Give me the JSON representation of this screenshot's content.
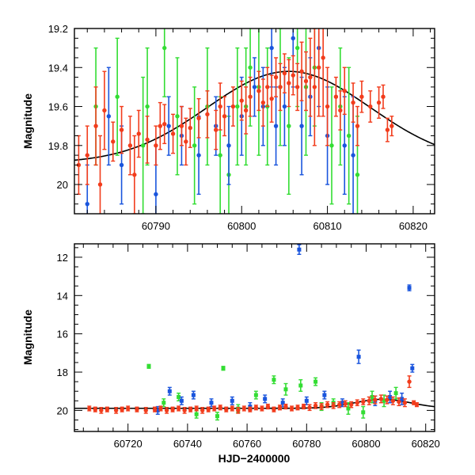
{
  "colors": {
    "red": "#f23c1c",
    "green": "#33dd33",
    "blue": "#1a55dd",
    "model": "#000000"
  },
  "chart_data": [
    {
      "type": "scatter",
      "title": "",
      "xlabel": "",
      "ylabel": "Magnitude",
      "xlim": [
        60780.5,
        60822.5
      ],
      "ylim": [
        20.15,
        19.2
      ],
      "y_inverted": true,
      "xticks": [
        60790,
        60800,
        60810,
        60820
      ],
      "yticks": [
        19.2,
        19.4,
        19.6,
        19.8,
        20
      ],
      "ytick_labels": [
        "19.2",
        "19.4",
        "19.6",
        "19.8",
        "20"
      ],
      "model_curve": {
        "type": "gaussian-dip",
        "baseline": 19.89,
        "peak_mag": 19.42,
        "peak_x": 60805.5,
        "sigma": 9.5
      },
      "series": [
        {
          "color": "red",
          "x": [
            60781,
            60782,
            60783,
            60783.5,
            60784,
            60785,
            60786,
            60787,
            60787.5,
            60788,
            60789,
            60790,
            60790.5,
            60791,
            60792,
            60793,
            60793.5,
            60794,
            60795,
            60796,
            60797,
            60797.5,
            60798,
            60799,
            60800,
            60800.5,
            60801,
            60802,
            60802.5,
            60803,
            60803.5,
            60804,
            60804.5,
            60805,
            60805.5,
            60806,
            60806.5,
            60807,
            60807.5,
            60808,
            60808.5,
            60809,
            60809.5,
            60810,
            60811,
            60811.5,
            60812,
            60813,
            60813.5,
            60814,
            60815,
            60816,
            60816.5,
            60817,
            60817.5
          ],
          "y": [
            19.9,
            19.85,
            19.7,
            20.0,
            19.62,
            19.78,
            19.72,
            19.8,
            19.95,
            19.74,
            19.77,
            19.8,
            19.7,
            19.69,
            19.74,
            19.7,
            19.78,
            19.71,
            19.66,
            19.64,
            19.72,
            19.6,
            19.65,
            19.6,
            19.57,
            19.62,
            19.55,
            19.52,
            19.58,
            19.5,
            19.56,
            19.45,
            19.5,
            19.43,
            19.48,
            19.44,
            19.5,
            19.42,
            19.47,
            19.45,
            19.5,
            19.4,
            19.35,
            19.6,
            19.55,
            19.62,
            19.52,
            19.58,
            19.7,
            19.55,
            19.6,
            19.58,
            19.55,
            19.72,
            19.7
          ],
          "err": [
            0.15,
            0.15,
            0.2,
            0.25,
            0.2,
            0.1,
            0.12,
            0.15,
            0.2,
            0.12,
            0.12,
            0.1,
            0.12,
            0.1,
            0.1,
            0.1,
            0.12,
            0.1,
            0.1,
            0.12,
            0.1,
            0.12,
            0.1,
            0.1,
            0.1,
            0.12,
            0.1,
            0.1,
            0.12,
            0.1,
            0.12,
            0.1,
            0.12,
            0.1,
            0.12,
            0.1,
            0.12,
            0.15,
            0.15,
            0.2,
            0.3,
            0.25,
            0.3,
            0.2,
            0.1,
            0.1,
            0.12,
            0.1,
            0.1,
            0.08,
            0.08,
            0.08,
            0.06,
            0.06,
            0.05
          ]
        },
        {
          "color": "blue",
          "x": [
            60782,
            60784.5,
            60786,
            60790,
            60791.5,
            60793,
            60795,
            60797,
            60798.5,
            60800,
            60801.5,
            60802.5,
            60803.5,
            60804,
            60805,
            60806,
            60807,
            60808,
            60809,
            60810,
            60812,
            60813
          ],
          "y": [
            20.1,
            19.65,
            19.9,
            20.05,
            19.7,
            19.75,
            19.85,
            19.7,
            19.8,
            19.65,
            19.5,
            19.6,
            19.3,
            19.7,
            19.6,
            19.25,
            19.7,
            19.55,
            19.3,
            19.75,
            19.8,
            19.85
          ],
          "err": [
            0.2,
            0.25,
            0.2,
            0.25,
            0.15,
            0.15,
            0.2,
            0.15,
            0.2,
            0.2,
            0.15,
            0.2,
            0.2,
            0.2,
            0.2,
            0.25,
            0.25,
            0.2,
            0.3,
            0.25,
            0.25,
            0.3
          ]
        },
        {
          "color": "green",
          "x": [
            60783,
            60785.5,
            60788.5,
            60789,
            60791,
            60792.5,
            60794.5,
            60796,
            60797.5,
            60798.5,
            60799.5,
            60800.5,
            60801,
            60802,
            60803,
            60804.5,
            60805.5,
            60806.5,
            60807.5,
            60808.5,
            60810.5,
            60811.5,
            60812.5,
            60813.5
          ],
          "y": [
            19.6,
            19.55,
            19.8,
            19.6,
            19.3,
            19.65,
            19.8,
            19.6,
            19.85,
            19.95,
            19.6,
            19.6,
            19.4,
            19.5,
            19.6,
            19.5,
            19.7,
            19.3,
            19.5,
            19.4,
            19.8,
            19.6,
            19.75,
            19.95
          ],
          "err": [
            0.3,
            0.3,
            0.35,
            0.3,
            0.25,
            0.3,
            0.3,
            0.3,
            0.3,
            0.3,
            0.3,
            0.3,
            0.3,
            0.35,
            0.3,
            0.3,
            0.35,
            0.3,
            0.35,
            0.3,
            0.3,
            0.3,
            0.35,
            0.3
          ]
        }
      ]
    },
    {
      "type": "scatter",
      "title": "",
      "xlabel": "HJD−2400000",
      "ylabel": "Magnitude",
      "xlim": [
        60702,
        60823
      ],
      "ylim": [
        21.1,
        11.3
      ],
      "y_inverted": true,
      "xticks": [
        60720,
        60740,
        60760,
        60780,
        60800,
        60820
      ],
      "yticks": [
        12,
        14,
        16,
        18,
        20
      ],
      "ytick_labels": [
        "12",
        "14",
        "16",
        "18",
        "20"
      ],
      "model_curve": {
        "type": "gaussian-dip",
        "baseline": 19.89,
        "peak_mag": 19.42,
        "peak_x": 60805.5,
        "sigma": 9.5
      },
      "series": [
        {
          "color": "red",
          "x": [
            60707,
            60709,
            60711,
            60713,
            60716,
            60718,
            60720,
            60723,
            60726,
            60729,
            60731,
            60733,
            60735,
            60737,
            60739,
            60741,
            60743,
            60745,
            60747,
            60749,
            60751,
            60753,
            60755,
            60757,
            60759,
            60761,
            60763,
            60765,
            60767,
            60769,
            60771,
            60773,
            60775,
            60777,
            60779,
            60781,
            60783,
            60785,
            60787,
            60789,
            60791,
            60793,
            60795,
            60797,
            60799,
            60801,
            60803,
            60805,
            60807,
            60809,
            60811,
            60813,
            60814.5,
            60816,
            60817
          ],
          "y": [
            19.9,
            19.95,
            20.0,
            19.95,
            20.0,
            19.95,
            19.9,
            19.95,
            20.0,
            19.95,
            19.9,
            20.0,
            19.95,
            19.9,
            20.0,
            19.95,
            19.9,
            20.0,
            19.95,
            19.9,
            19.85,
            19.95,
            19.9,
            20.0,
            19.9,
            19.95,
            19.85,
            19.9,
            19.8,
            19.95,
            19.85,
            19.8,
            19.9,
            19.85,
            19.8,
            19.85,
            19.75,
            19.8,
            19.7,
            19.75,
            19.7,
            19.65,
            19.7,
            19.6,
            19.55,
            19.5,
            19.45,
            19.4,
            19.45,
            19.5,
            19.55,
            19.6,
            18.5,
            19.6,
            19.7
          ],
          "err": [
            0.12,
            0.12,
            0.15,
            0.12,
            0.15,
            0.12,
            0.12,
            0.12,
            0.15,
            0.12,
            0.12,
            0.15,
            0.12,
            0.12,
            0.15,
            0.12,
            0.12,
            0.15,
            0.12,
            0.12,
            0.12,
            0.12,
            0.12,
            0.15,
            0.12,
            0.12,
            0.12,
            0.12,
            0.12,
            0.12,
            0.12,
            0.12,
            0.12,
            0.12,
            0.12,
            0.15,
            0.15,
            0.15,
            0.15,
            0.15,
            0.15,
            0.15,
            0.15,
            0.15,
            0.15,
            0.2,
            0.2,
            0.2,
            0.2,
            0.2,
            0.2,
            0.2,
            0.3,
            0.1,
            0.1
          ]
        },
        {
          "color": "blue",
          "x": [
            60730,
            60734,
            60738,
            60742,
            60748,
            60755,
            60761,
            60766,
            60772,
            60777.5,
            60780,
            60786,
            60792,
            60797.5,
            60803,
            60808,
            60812,
            60814.5,
            60815.5
          ],
          "y": [
            20.0,
            19.0,
            19.5,
            19.2,
            19.6,
            19.5,
            19.8,
            19.4,
            19.6,
            11.6,
            19.5,
            19.2,
            19.6,
            17.2,
            19.5,
            19.3,
            19.4,
            13.6,
            17.8
          ],
          "err": [
            0.2,
            0.2,
            0.2,
            0.2,
            0.2,
            0.2,
            0.2,
            0.2,
            0.2,
            0.25,
            0.2,
            0.2,
            0.2,
            0.35,
            0.25,
            0.3,
            0.3,
            0.15,
            0.2
          ]
        },
        {
          "color": "green",
          "x": [
            60727,
            60732,
            60737,
            60743,
            60750,
            60752,
            60757,
            60763,
            60769,
            60773,
            60778,
            60783,
            60785,
            60789,
            60794,
            60799,
            60802,
            60806,
            60810
          ],
          "y": [
            17.7,
            19.6,
            19.3,
            20.2,
            20.3,
            17.8,
            19.9,
            19.2,
            18.4,
            18.9,
            18.7,
            18.5,
            19.8,
            19.6,
            19.9,
            20.1,
            19.3,
            19.5,
            19.1
          ],
          "err": [
            0.1,
            0.2,
            0.2,
            0.2,
            0.2,
            0.1,
            0.2,
            0.2,
            0.2,
            0.3,
            0.3,
            0.2,
            0.2,
            0.2,
            0.3,
            0.3,
            0.3,
            0.3,
            0.3
          ]
        }
      ]
    }
  ]
}
